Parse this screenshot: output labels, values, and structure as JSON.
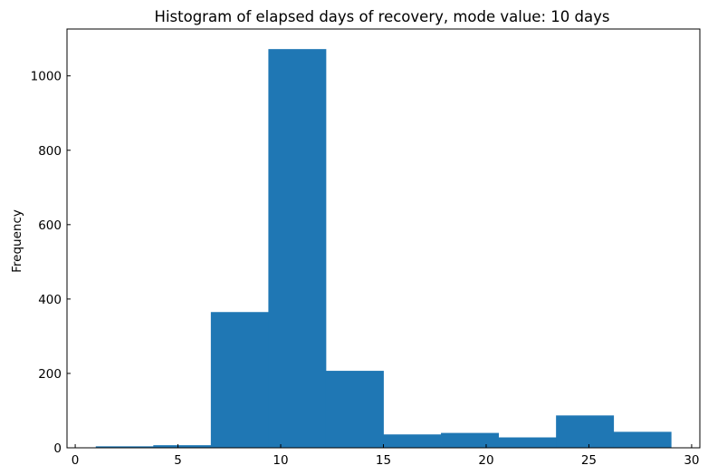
{
  "chart_data": {
    "type": "bar",
    "title": "Histogram of elapsed days of recovery, mode value: 10 days",
    "xlabel": "",
    "ylabel": "Frequency",
    "bin_edges": [
      1.0,
      3.8,
      6.6,
      9.4,
      12.2,
      15.0,
      17.8,
      20.6,
      23.4,
      26.2,
      29.0
    ],
    "values": [
      4,
      7,
      365,
      1072,
      207,
      36,
      40,
      28,
      87,
      43
    ],
    "xlim": [
      -0.4,
      30.4
    ],
    "ylim": [
      0,
      1126
    ],
    "xticks": [
      0,
      5,
      10,
      15,
      20,
      25,
      30
    ],
    "yticks": [
      0,
      200,
      400,
      600,
      800,
      1000
    ],
    "bar_color": "#1f77b4",
    "grid": false,
    "legend": "none"
  }
}
